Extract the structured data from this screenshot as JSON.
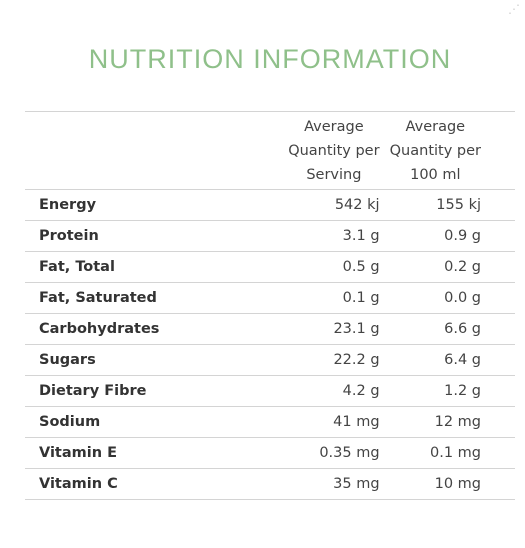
{
  "title": "NUTRITION INFORMATION",
  "corner_icon": "resize-icon",
  "columns": [
    {
      "line1": "Average",
      "line2": "Quantity per",
      "line3": "Serving"
    },
    {
      "line1": "Average",
      "line2": "Quantity per",
      "line3": "100 ml"
    }
  ],
  "rows": [
    {
      "name": "Energy",
      "serving": "542 kj",
      "per100": "155 kj"
    },
    {
      "name": "Protein",
      "serving": "3.1 g",
      "per100": "0.9 g"
    },
    {
      "name": "Fat, Total",
      "serving": "0.5 g",
      "per100": "0.2 g"
    },
    {
      "name": "Fat, Saturated",
      "serving": "0.1 g",
      "per100": "0.0 g"
    },
    {
      "name": "Carbohydrates",
      "serving": "23.1 g",
      "per100": "6.6 g"
    },
    {
      "name": "Sugars",
      "serving": "22.2 g",
      "per100": "6.4 g"
    },
    {
      "name": "Dietary Fibre",
      "serving": "4.2 g",
      "per100": "1.2 g"
    },
    {
      "name": "Sodium",
      "serving": "41 mg",
      "per100": "12 mg"
    },
    {
      "name": "Vitamin E",
      "serving": "0.35 mg",
      "per100": "0.1 mg"
    },
    {
      "name": "Vitamin C",
      "serving": "35 mg",
      "per100": "10 mg"
    }
  ]
}
